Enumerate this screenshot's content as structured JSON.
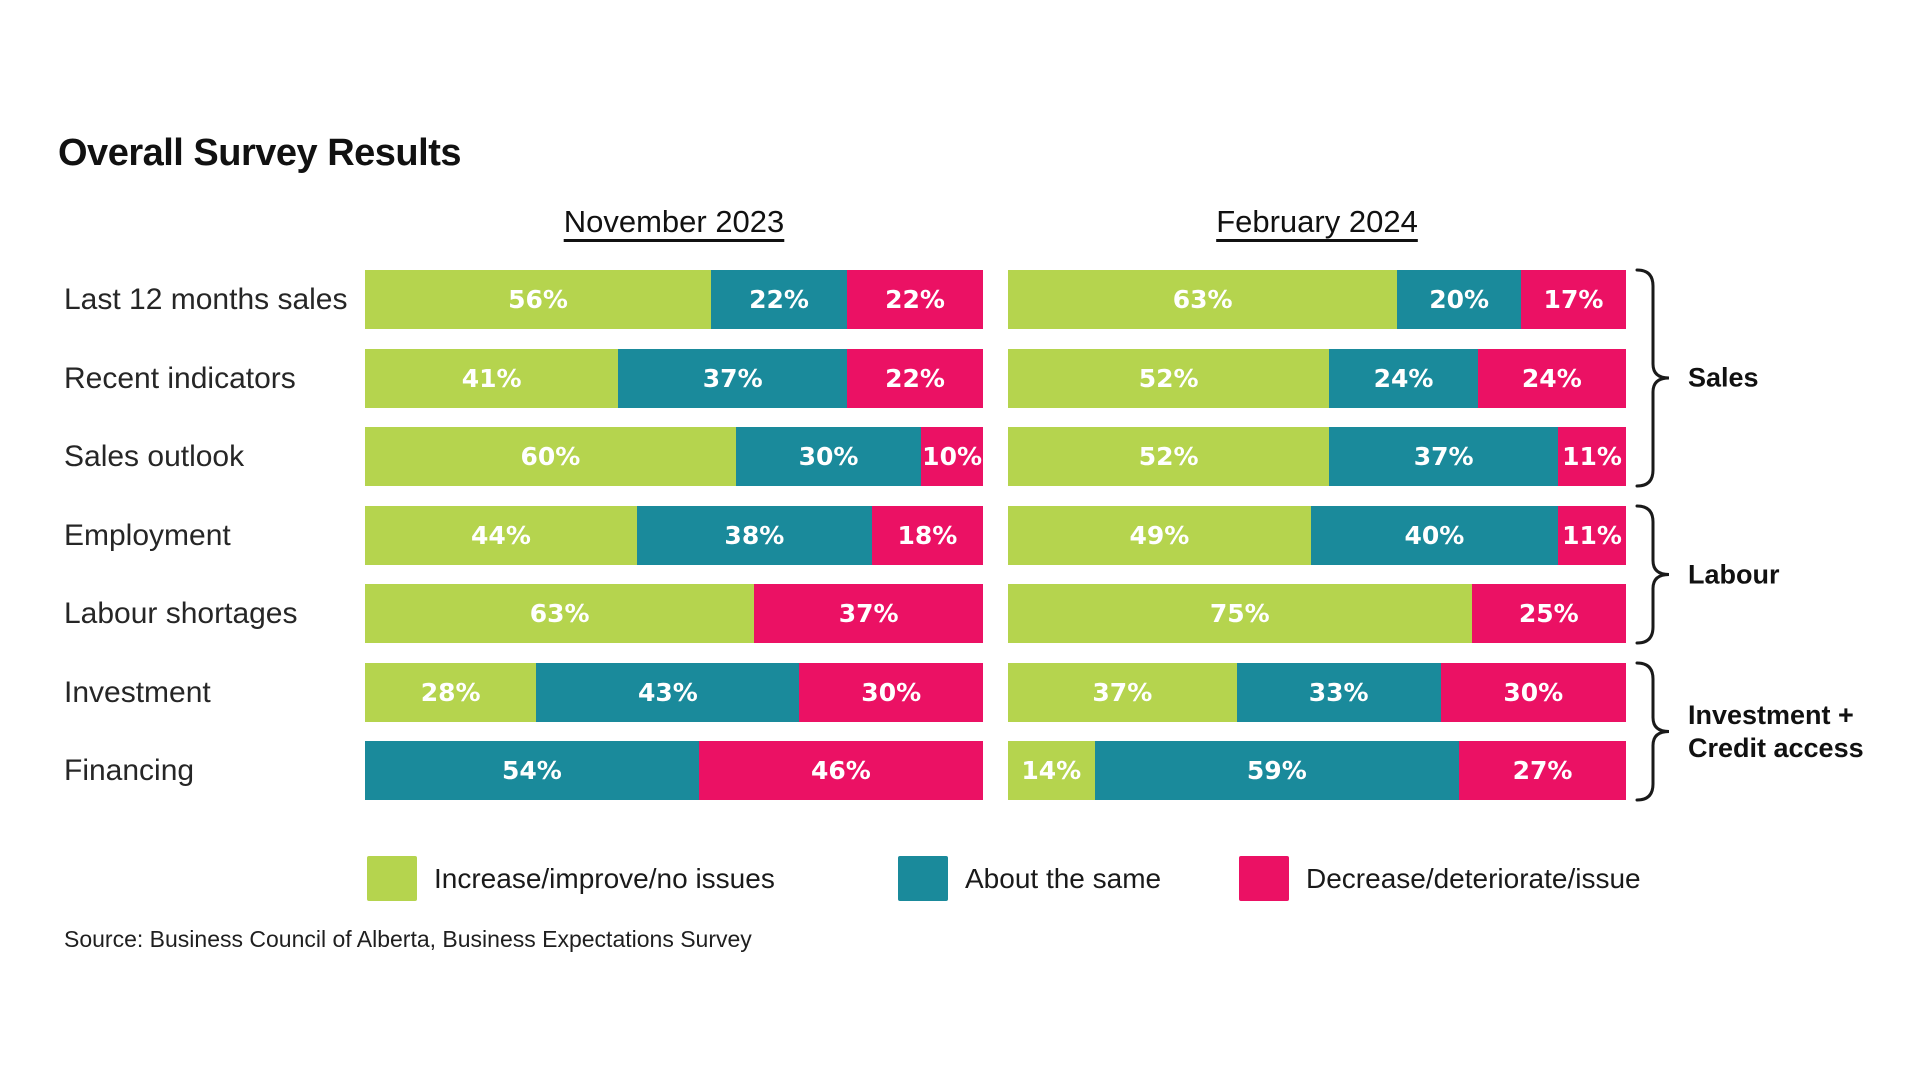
{
  "title": "Overall Survey Results",
  "source": "Source: Business Council of Alberta, Business Expectations Survey",
  "chart_data": {
    "type": "bar",
    "variant": "horizontal-stacked-grouped",
    "unit": "%",
    "categories": [
      "Last 12 months sales",
      "Recent indicators",
      "Sales outlook",
      "Employment",
      "Labour shortages",
      "Investment",
      "Financing"
    ],
    "series": [
      {
        "name": "Increase/improve/no issues",
        "color": "#b5d44e"
      },
      {
        "name": "About the same",
        "color": "#1a8a9b"
      },
      {
        "name": "Decrease/deteriorate/issue",
        "color": "#eb1164"
      }
    ],
    "columns": [
      {
        "label": "November 2023",
        "rows": [
          [
            56,
            22,
            22
          ],
          [
            41,
            37,
            22
          ],
          [
            60,
            30,
            10
          ],
          [
            44,
            38,
            18
          ],
          [
            63,
            0,
            37
          ],
          [
            28,
            43,
            30
          ],
          [
            0,
            54,
            46
          ]
        ]
      },
      {
        "label": "February 2024",
        "rows": [
          [
            63,
            20,
            17
          ],
          [
            52,
            24,
            24
          ],
          [
            52,
            37,
            11
          ],
          [
            49,
            40,
            11
          ],
          [
            75,
            0,
            25
          ],
          [
            37,
            33,
            30
          ],
          [
            14,
            59,
            27
          ]
        ]
      }
    ],
    "groups": [
      {
        "label_lines": [
          "Sales"
        ],
        "first_row": 0,
        "last_row": 2
      },
      {
        "label_lines": [
          "Labour"
        ],
        "first_row": 3,
        "last_row": 4
      },
      {
        "label_lines": [
          "Investment +",
          "Credit access"
        ],
        "first_row": 5,
        "last_row": 6
      }
    ],
    "legend_position": "bottom",
    "value_labels": "inside-white"
  }
}
